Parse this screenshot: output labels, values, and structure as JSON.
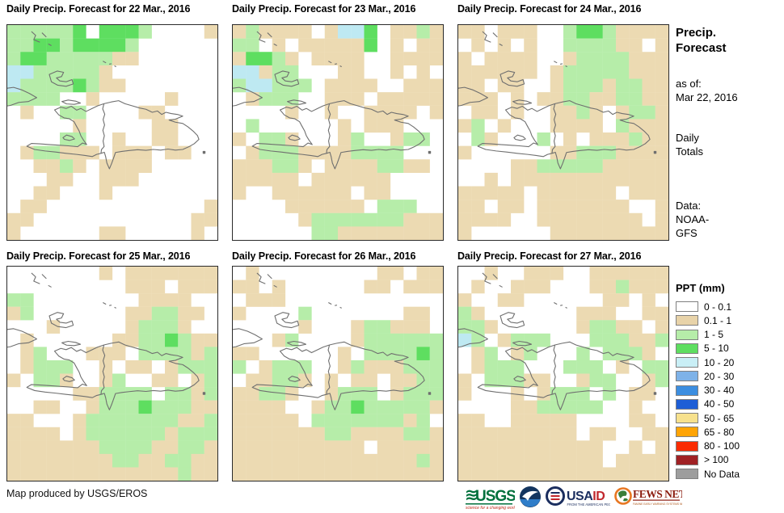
{
  "panels": [
    {
      "title": "Daily Precip. Forecast for 22 Mar., 2016",
      "grid": [
        "gggggGwGGGgwwwwt",
        "ggGGgGGGGgwwwwww",
        "gGGgggggttwwwwww",
        "ccgggggtwwwwwwww",
        "cggggGgttwwwwwww",
        "ggggwwtwwwwwtwww",
        "wtwwggwwwwttwwww",
        "wwwwwtwwwwwttwww",
        "wwwwggwwtwwttwww",
        "wtggtttwtttwttww",
        "wwttgtwttttwwwww",
        "wwwttwwtttwwwwww",
        "wwttwwwtwwwwwwww",
        "wttwwwwwwwwwwwwt",
        "ttwwwwwwwwwwwwtt",
        "twwwwwwttwwwwwtw"
      ]
    },
    {
      "title": "Daily Precip. Forecast for 23 Mar., 2016",
      "grid": [
        "tgttttwtccGwttgt",
        "ggwtwtttttGwtwtt",
        "tGGgtwttttwwtttt",
        "cctggwwwttwwtwtw",
        "gccgggwttttwwttt",
        "wtgggwwtttwttttt",
        "wwwwtwwtwwttttwt",
        "wgwwwwwwtwtttwww",
        "twggtwwwtgwwtggw",
        "wtgggttttggggwww",
        "tttggtwttttggttw",
        "tttttwttttttwwww",
        "twwttttttwttwwww",
        "wwwwttttttwgggww",
        "wwwwwtgggggggttt",
        "wwwwwwggtttttttt"
      ]
    },
    {
      "title": "Daily Precip. Forecast for 24 Mar., 2016",
      "grid": [
        "ttwtttwwgGGgtttt",
        "wtwtwtwwggggttwt",
        "twttttwwtggggttt",
        "ttttttwtgggggttt",
        "ttwttwwtgggtggtt",
        "tttwtwttggttggtt",
        "wttwtwwttgtwtggt",
        "tgwtwwwttttwgttt",
        "wgtwwwgwtwtttgtt",
        "twwwwwwttgggtttt",
        "wwwwttgggggttttt",
        "wwtwtttttttttttt",
        "tttttwttttttwttt",
        "ttwttwtttttttwwt",
        "ttttwwttttttttwt",
        "twwwwwwttttttttt"
      ]
    },
    {
      "title": "Daily Precip. Forecast for 25 Mar., 2016",
      "grid": [
        "wwwwwwwtwttttttt",
        "wwwwwwwwwtttwttt",
        "ggwwwwwwwwttttww",
        "tgwwwwwwwttggttw",
        "wwwtwwwwwtgggtww",
        "wtwwwwwwttggGgtt",
        "wtgwwwtttwggggtg",
        "wtgggwwtwttwtggg",
        "twggtwwtgwwttwtg",
        "wwwwwttggggwggtg",
        "wwttwwtgggGgggtt",
        "ttwwwtgggggggttg",
        "ttttwtggggggtggg",
        "tttttttggggttggt",
        "ttttttttggttggtt",
        "tttttttttttttgtt"
      ]
    },
    {
      "title": "Daily Precip. Forecast for 26 Mar., 2016",
      "grid": [
        "wtwwwwwwwwwttwtt",
        "ttwtwwwwwwttwttt",
        "wtttwwwwwwwwwwww",
        "twwwwgwwwwwwwttw",
        "wwwwwtwwwtggtttw",
        "wwwtgwwwwtgggggg",
        "ttwwwwwwtwggggGg",
        "gwtgggwwtgtttggg",
        "wttggtwtwttwttgg",
        "ttggtwwtgggwtggg",
        "ttttwwtggGgggggt",
        "tttttwgggggggtgw",
        "tttttttggttttggt",
        "ttttttttttwttttt",
        "ttttttttttttttgt",
        "tttttttttttttttt"
      ]
    },
    {
      "title": "Daily Precip. Forecast for 27 Mar., 2016",
      "grid": [
        "wwtwwtttwwtttttt",
        "wtwwtttwwwttgttt",
        "twwttwwwwwwttwtw",
        "gtwwwwwwwtttwwtt",
        "ggtwwwwwwtggttwt",
        "cgwtgggwwwgggttg",
        "wtgwtgwwwgwgggtw",
        "wtgggwwwgggwtwgg",
        "twgggttwwtggwwtg",
        "twwwtwtgggwgwttw",
        "wwwwttgggggwwtww",
        "ttwwtttttwwwwttw",
        "tttttttttwttwwtt",
        "tttttttttttwwtwt",
        "tttttttttttwtttt",
        "tttttttttttttttt"
      ]
    }
  ],
  "map_colors": {
    "t": "#ECDAB2",
    "g": "#B6EDA9",
    "G": "#5EDE60",
    "c": "#BEE9F2",
    "w": "#FFFFFF"
  },
  "coast_color": "#6F6F6F",
  "sidebar": {
    "title_line1": "Precip.",
    "title_line2": "Forecast",
    "as_of_label": "as of:",
    "as_of_date": "Mar 22, 2016",
    "totals_line1": "Daily",
    "totals_line2": "Totals",
    "data_label": "Data:",
    "data_line1": "NOAA-",
    "data_line2": "GFS"
  },
  "legend": {
    "title": "PPT (mm)",
    "entries": [
      {
        "label": "0 - 0.1",
        "color": "#FFFFFF"
      },
      {
        "label": "0.1 - 1",
        "color": "#E8D3A9"
      },
      {
        "label": "1 - 5",
        "color": "#B6EDA9"
      },
      {
        "label": "5 - 10",
        "color": "#5EDE60"
      },
      {
        "label": "10 - 20",
        "color": "#C9EFF6"
      },
      {
        "label": "20 - 30",
        "color": "#7EB2E8"
      },
      {
        "label": "30 - 40",
        "color": "#3C8EE0"
      },
      {
        "label": "40 - 50",
        "color": "#1E5ED6"
      },
      {
        "label": "50 - 65",
        "color": "#F7E18D"
      },
      {
        "label": "65 - 80",
        "color": "#FFA405"
      },
      {
        "label": "80 - 100",
        "color": "#FB2C02"
      },
      {
        "label": "> 100",
        "color": "#A02124"
      },
      {
        "label": "No Data",
        "color": "#9D9D9D"
      }
    ]
  },
  "footer": {
    "credit": "Map produced by USGS/EROS",
    "logos": {
      "usgs": {
        "text": "USGS",
        "tagline": "science for a changing world"
      },
      "noaa": {
        "name": "NOAA"
      },
      "usaid": {
        "text_a": "USA",
        "text_b": "ID",
        "tagline": "FROM THE AMERICAN PEOPLE"
      },
      "fewsnet": {
        "text": "FEWS NET",
        "tagline": "FAMINE EARLY WARNING SYSTEMS NETWORK"
      }
    }
  }
}
